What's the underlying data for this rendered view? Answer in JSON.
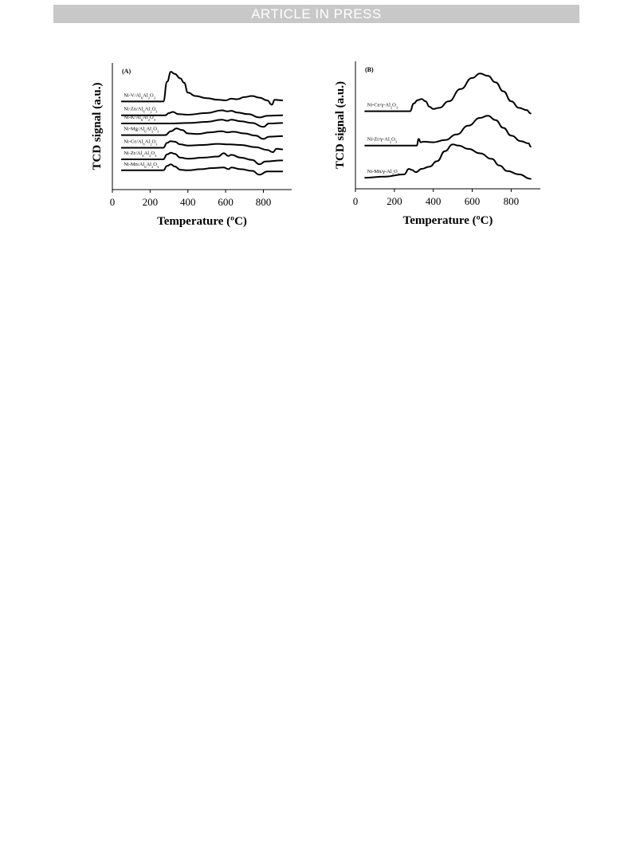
{
  "header": {
    "banner": "ARTICLE IN PRESS"
  },
  "chart_data": [
    {
      "type": "line",
      "panel_label": "(A)",
      "xlabel": "Temperature (ºC)",
      "ylabel": "TCD signal (a.u.)",
      "xlim": [
        0,
        950
      ],
      "xticks": [
        0,
        200,
        400,
        600,
        800
      ],
      "series": [
        {
          "name": "Ni-V/Al6Al2O3",
          "label_html": "Ni-V/Al6Al<sub>2</sub>O<sub>3</sub>",
          "baseline": 8.0,
          "points": [
            [
              50,
              0
            ],
            [
              270,
              0
            ],
            [
              290,
              1.8
            ],
            [
              310,
              2.7
            ],
            [
              330,
              2.5
            ],
            [
              360,
              2.1
            ],
            [
              380,
              1.7
            ],
            [
              400,
              0.8
            ],
            [
              440,
              0.5
            ],
            [
              500,
              0.3
            ],
            [
              560,
              0.15
            ],
            [
              600,
              0.1
            ],
            [
              630,
              0.25
            ],
            [
              660,
              0.2
            ],
            [
              700,
              0.4
            ],
            [
              740,
              0.5
            ],
            [
              780,
              0.35
            ],
            [
              820,
              0.1
            ],
            [
              845,
              -0.3
            ],
            [
              860,
              0.15
            ],
            [
              900,
              0.1
            ]
          ]
        },
        {
          "name": "Ni-Zn/Al6Al2O3",
          "baseline": 6.75,
          "points": [
            [
              50,
              0
            ],
            [
              280,
              0
            ],
            [
              300,
              0.2
            ],
            [
              320,
              0.3
            ],
            [
              350,
              0.1
            ],
            [
              400,
              0.05
            ],
            [
              500,
              0.2
            ],
            [
              580,
              0.45
            ],
            [
              610,
              0.35
            ],
            [
              630,
              0.4
            ],
            [
              660,
              0.25
            ],
            [
              720,
              0.1
            ],
            [
              780,
              -0.2
            ],
            [
              820,
              -0.05
            ],
            [
              900,
              0
            ]
          ]
        },
        {
          "name": "Ni-K/Al6Al2O3",
          "baseline": 6.0,
          "points": [
            [
              50,
              0
            ],
            [
              300,
              0
            ],
            [
              400,
              0.05
            ],
            [
              500,
              0.15
            ],
            [
              580,
              0.35
            ],
            [
              610,
              0.25
            ],
            [
              630,
              0.35
            ],
            [
              680,
              0.2
            ],
            [
              740,
              0.05
            ],
            [
              800,
              -0.3
            ],
            [
              830,
              0
            ],
            [
              900,
              0.05
            ]
          ]
        },
        {
          "name": "Ni-Mg/Al6Al2O3",
          "baseline": 4.95,
          "points": [
            [
              50,
              0
            ],
            [
              280,
              0
            ],
            [
              310,
              0.35
            ],
            [
              340,
              0.6
            ],
            [
              370,
              0.45
            ],
            [
              400,
              0.15
            ],
            [
              450,
              0.1
            ],
            [
              520,
              0.25
            ],
            [
              580,
              0.35
            ],
            [
              610,
              0.25
            ],
            [
              640,
              0.3
            ],
            [
              700,
              0.15
            ],
            [
              760,
              -0.05
            ],
            [
              800,
              -0.35
            ],
            [
              830,
              -0.15
            ],
            [
              900,
              -0.1
            ]
          ]
        },
        {
          "name": "Ni-Ce/Al6Al2O3",
          "baseline": 3.8,
          "points": [
            [
              50,
              0
            ],
            [
              270,
              0
            ],
            [
              290,
              0.45
            ],
            [
              310,
              0.6
            ],
            [
              330,
              0.55
            ],
            [
              360,
              0.3
            ],
            [
              400,
              0.2
            ],
            [
              480,
              0.25
            ],
            [
              560,
              0.35
            ],
            [
              620,
              0.3
            ],
            [
              680,
              0.25
            ],
            [
              760,
              0.05
            ],
            [
              820,
              -0.2
            ],
            [
              850,
              -0.4
            ],
            [
              870,
              -0.1
            ],
            [
              900,
              -0.15
            ]
          ]
        },
        {
          "name": "Ni-Zr/Al6Al2O3",
          "baseline": 2.75,
          "points": [
            [
              50,
              0
            ],
            [
              270,
              0
            ],
            [
              290,
              0.45
            ],
            [
              310,
              0.6
            ],
            [
              330,
              0.5
            ],
            [
              360,
              0.15
            ],
            [
              400,
              0.05
            ],
            [
              480,
              0.15
            ],
            [
              560,
              0.25
            ],
            [
              590,
              0.55
            ],
            [
              615,
              0.3
            ],
            [
              630,
              0.4
            ],
            [
              680,
              0.15
            ],
            [
              740,
              -0.05
            ],
            [
              780,
              -0.45
            ],
            [
              810,
              -0.2
            ],
            [
              900,
              -0.1
            ]
          ]
        },
        {
          "name": "Ni-Mn/Al6Al2O3",
          "baseline": 1.75,
          "points": [
            [
              50,
              0
            ],
            [
              270,
              0
            ],
            [
              290,
              0.4
            ],
            [
              310,
              0.55
            ],
            [
              330,
              0.35
            ],
            [
              360,
              0.05
            ],
            [
              400,
              0
            ],
            [
              470,
              0.1
            ],
            [
              530,
              0.2
            ],
            [
              590,
              0.25
            ],
            [
              615,
              0.1
            ],
            [
              630,
              0.25
            ],
            [
              680,
              0.1
            ],
            [
              740,
              -0.05
            ],
            [
              780,
              -0.4
            ],
            [
              820,
              -0.1
            ],
            [
              900,
              -0.1
            ]
          ]
        }
      ],
      "ylim": [
        0,
        11.5
      ]
    },
    {
      "type": "line",
      "panel_label": "(B)",
      "xlabel": "Temperature (ºC)",
      "ylabel": "TCD signal (a.u.)",
      "xlim": [
        0,
        950
      ],
      "xticks": [
        0,
        200,
        400,
        600,
        800
      ],
      "series": [
        {
          "name": "Ni-Ce/γ-Al2O3",
          "baseline": 7.0,
          "points": [
            [
              50,
              0
            ],
            [
              280,
              0
            ],
            [
              300,
              0.7
            ],
            [
              320,
              1.0
            ],
            [
              340,
              1.1
            ],
            [
              360,
              0.9
            ],
            [
              380,
              0.4
            ],
            [
              400,
              0.2
            ],
            [
              430,
              0.3
            ],
            [
              480,
              0.9
            ],
            [
              540,
              2.0
            ],
            [
              600,
              3.0
            ],
            [
              640,
              3.4
            ],
            [
              680,
              3.2
            ],
            [
              720,
              2.6
            ],
            [
              760,
              1.8
            ],
            [
              800,
              0.9
            ],
            [
              840,
              0.3
            ],
            [
              880,
              0.1
            ],
            [
              900,
              -0.2
            ]
          ]
        },
        {
          "name": "Ni-Zr/γ-Al2O3",
          "baseline": 3.9,
          "points": [
            [
              50,
              0
            ],
            [
              315,
              0
            ],
            [
              325,
              0.6
            ],
            [
              335,
              0.3
            ],
            [
              350,
              0.35
            ],
            [
              400,
              0.3
            ],
            [
              460,
              0.5
            ],
            [
              520,
              1.0
            ],
            [
              580,
              1.8
            ],
            [
              640,
              2.5
            ],
            [
              680,
              2.7
            ],
            [
              720,
              2.3
            ],
            [
              760,
              1.6
            ],
            [
              800,
              0.9
            ],
            [
              850,
              0.4
            ],
            [
              890,
              0.2
            ],
            [
              900,
              -0.1
            ]
          ]
        },
        {
          "name": "Ni-Mn/γ-Al2O3",
          "baseline": 1.0,
          "points": [
            [
              50,
              0
            ],
            [
              150,
              0.1
            ],
            [
              250,
              0.3
            ],
            [
              275,
              0.8
            ],
            [
              290,
              0.7
            ],
            [
              310,
              0.5
            ],
            [
              340,
              0.8
            ],
            [
              380,
              1.0
            ],
            [
              420,
              1.5
            ],
            [
              460,
              2.4
            ],
            [
              500,
              3.0
            ],
            [
              530,
              2.9
            ],
            [
              580,
              2.6
            ],
            [
              640,
              2.2
            ],
            [
              700,
              1.7
            ],
            [
              740,
              1.1
            ],
            [
              780,
              0.6
            ],
            [
              840,
              0.3
            ],
            [
              900,
              -0.1
            ]
          ]
        }
      ],
      "ylim": [
        0,
        11.5
      ]
    }
  ]
}
